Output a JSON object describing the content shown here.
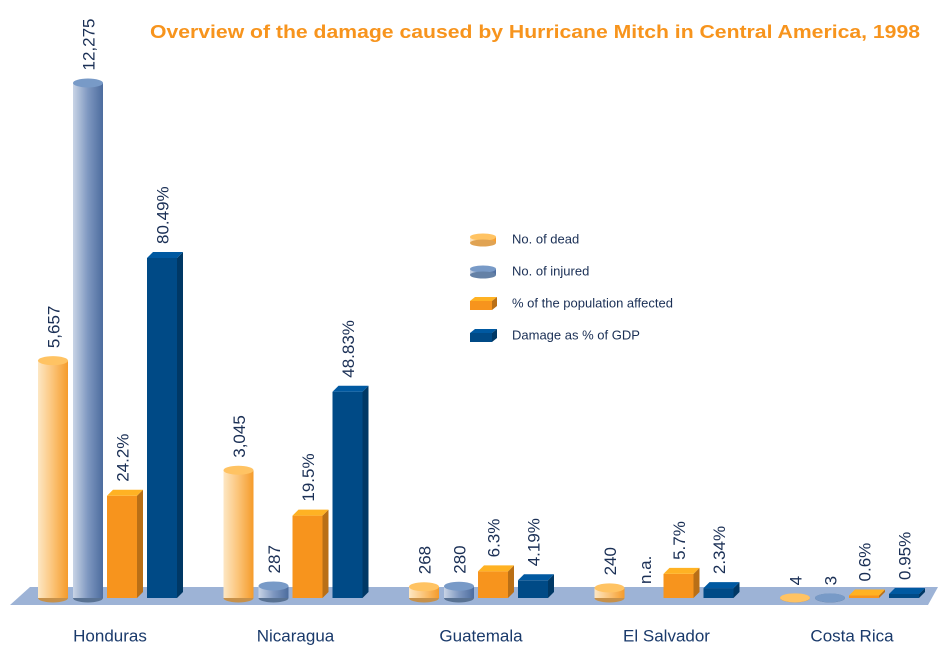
{
  "chart_data": {
    "type": "bar",
    "title": "Overview of the damage caused by Hurricane Mitch in Central America, 1998",
    "categories": [
      "Honduras",
      "Nicaragua",
      "Guatemala",
      "El Salvador",
      "Costa Rica"
    ],
    "series": [
      {
        "name": "No. of dead",
        "color": "#f9b55c",
        "values": [
          5657,
          3045,
          268,
          240,
          4
        ],
        "value_labels": [
          "5,657",
          "3,045",
          "268",
          "240",
          "4"
        ]
      },
      {
        "name": "No. of injured",
        "color": "#6f8fb8",
        "values": [
          12275,
          287,
          280,
          null,
          3
        ],
        "value_labels": [
          "12,275",
          "287",
          "280",
          "n.a.",
          "3"
        ]
      },
      {
        "name": "% of the population affected",
        "color": "#f7941d",
        "values": [
          24.2,
          19.5,
          6.3,
          5.7,
          0.6
        ],
        "value_labels": [
          "24.2%",
          "19.5%",
          "6.3%",
          "5.7%",
          "0.6%"
        ]
      },
      {
        "name": "Damage as % of GDP",
        "color": "#004a86",
        "values": [
          80.49,
          48.83,
          4.19,
          2.34,
          0.95
        ],
        "value_labels": [
          "80.49%",
          "48.83%",
          "4.19%",
          "2.34%",
          "0.95%"
        ]
      }
    ],
    "legend": "center"
  }
}
